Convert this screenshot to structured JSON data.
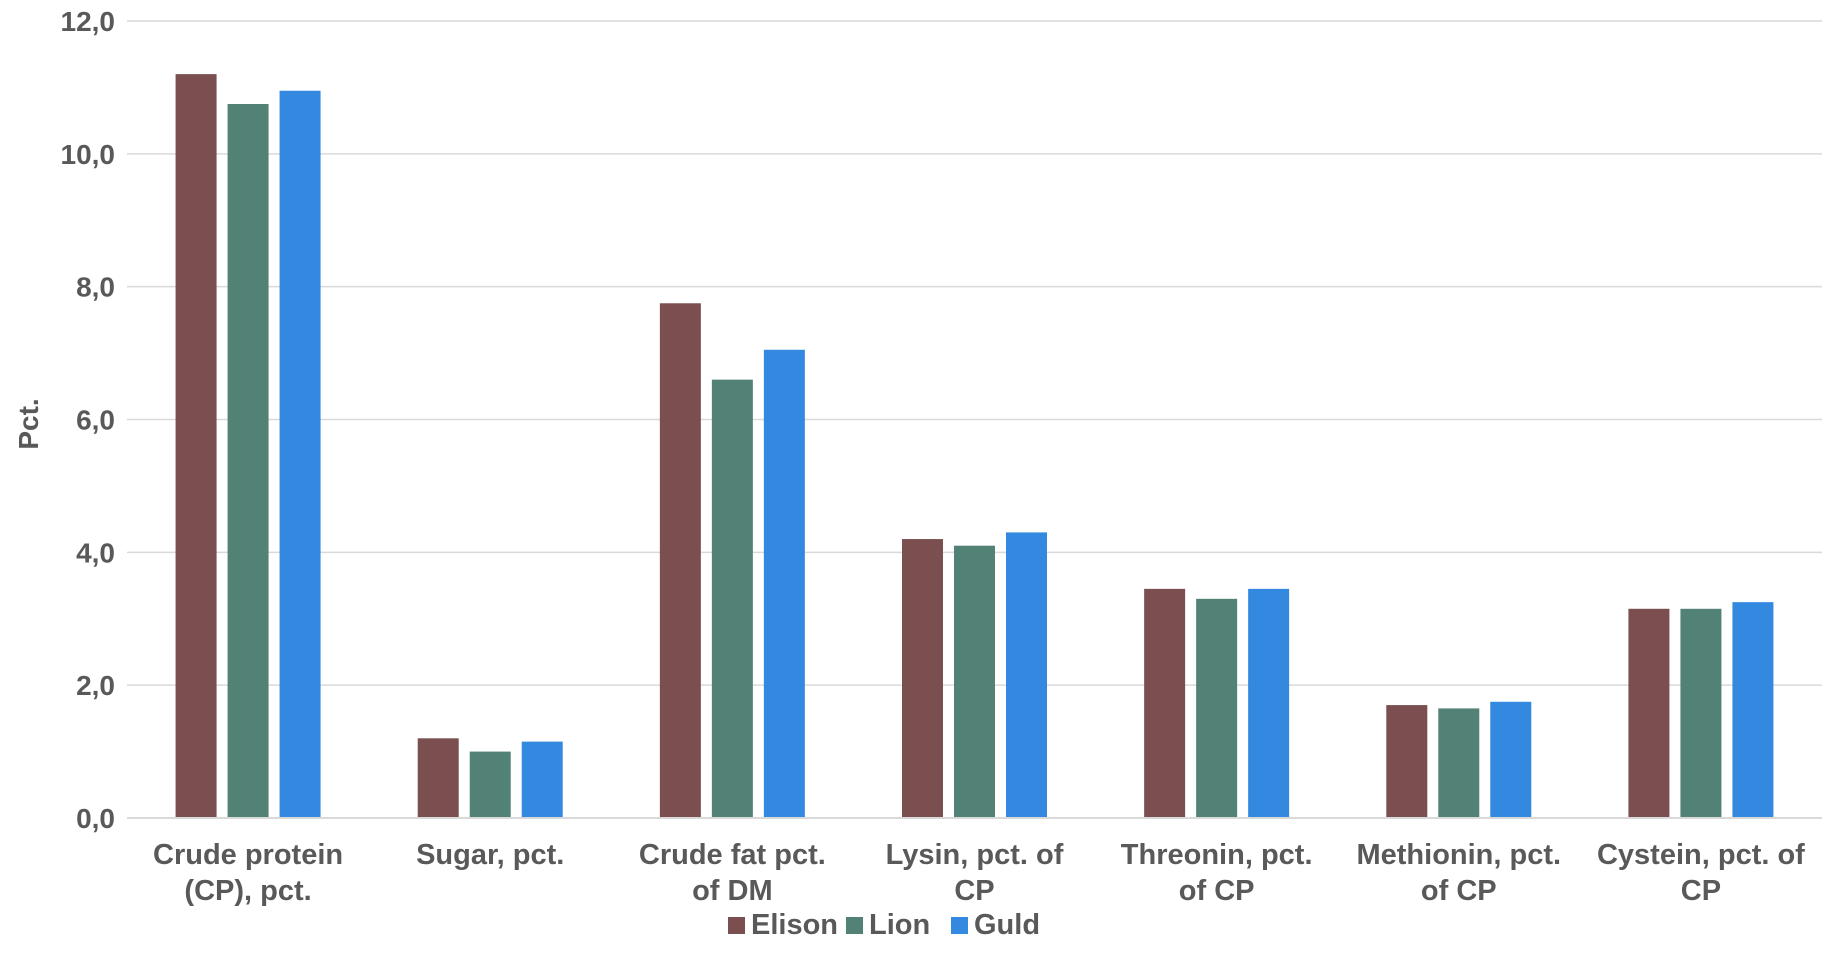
{
  "chart_data": {
    "type": "bar",
    "categories": [
      [
        "Crude protein",
        "(CP), pct."
      ],
      [
        "Sugar, pct."
      ],
      [
        "Crude fat pct.",
        "of DM"
      ],
      [
        "Lysin, pct. of",
        "CP"
      ],
      [
        "Threonin, pct.",
        "of CP"
      ],
      [
        "Methionin, pct.",
        "of CP"
      ],
      [
        "Cystein, pct. of",
        "CP"
      ]
    ],
    "series": [
      {
        "name": "Elison",
        "color": "#7b4f50",
        "values": [
          11.2,
          1.2,
          7.75,
          4.2,
          3.45,
          1.7,
          3.15
        ]
      },
      {
        "name": "Lion",
        "color": "#528176",
        "values": [
          10.75,
          1.0,
          6.6,
          4.1,
          3.3,
          1.65,
          3.15
        ]
      },
      {
        "name": "Guld",
        "color": "#3388e0",
        "values": [
          10.95,
          1.15,
          7.05,
          4.3,
          3.45,
          1.75,
          3.25
        ]
      }
    ],
    "ylabel": "Pct.",
    "xlabel": "",
    "ylim": [
      0,
      12
    ],
    "yticks": [
      "0,0",
      "2,0",
      "4,0",
      "6,0",
      "8,0",
      "10,0",
      "12,0"
    ],
    "grid": true,
    "legend": "bottom"
  }
}
